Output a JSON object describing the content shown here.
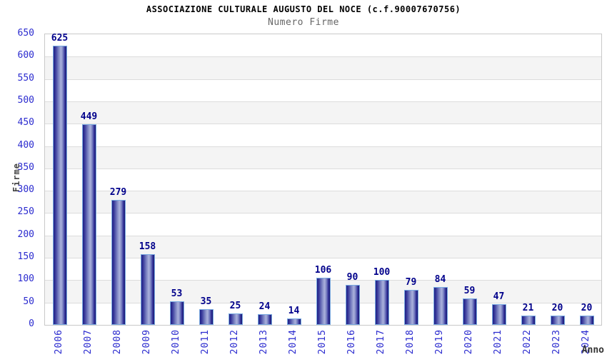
{
  "chart_data": {
    "type": "bar",
    "title": "ASSOCIAZIONE CULTURALE AUGUSTO DEL NOCE (c.f.90007670756)",
    "subtitle": "Numero Firme",
    "xlabel": "Anno",
    "ylabel": "Firme",
    "categories": [
      "2006",
      "2007",
      "2008",
      "2009",
      "2010",
      "2011",
      "2012",
      "2013",
      "2014",
      "2015",
      "2016",
      "2017",
      "2018",
      "2019",
      "2020",
      "2021",
      "2022",
      "2023",
      "2024"
    ],
    "values": [
      625,
      449,
      279,
      158,
      53,
      35,
      25,
      24,
      14,
      106,
      90,
      100,
      79,
      84,
      59,
      47,
      21,
      20,
      20
    ],
    "ylim": [
      0,
      650
    ],
    "ytick_step": 50,
    "grid": true,
    "legend_position": "none",
    "plot_background": "alternating horizontal bands white/light-gray",
    "colors": {
      "title": "#000000",
      "subtitle": "#666666",
      "axis_title": "#444444",
      "tick_label": "#2b2bcf",
      "value_label": "#00008b",
      "bar_dark": "#1e1e85",
      "bar_light": "#abb2dc",
      "bar_border": "#79aae1",
      "band_alt": "#f4f4f4",
      "gridline": "#dcdcdc",
      "plot_border": "#c9c9c9"
    }
  }
}
